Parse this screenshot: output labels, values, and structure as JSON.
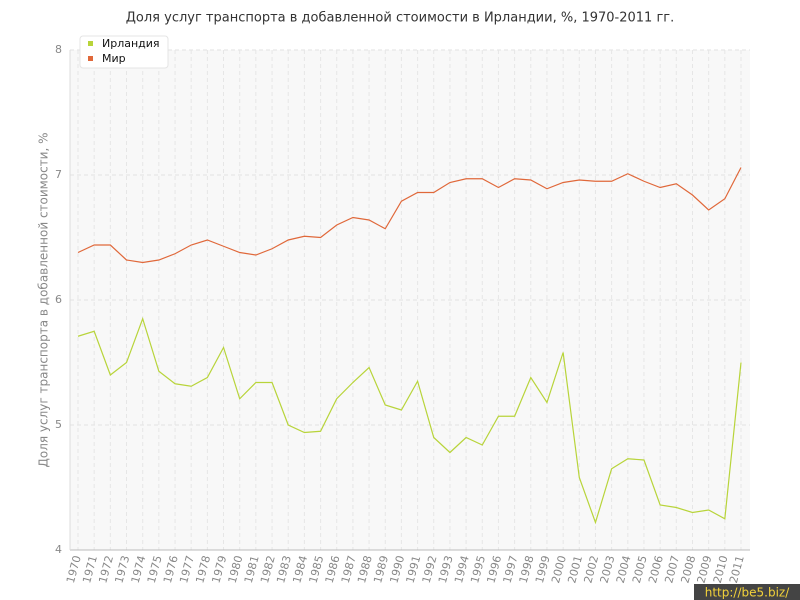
{
  "chart_data": {
    "type": "line",
    "title": "Доля услуг транспорта в добавленной стоимости в Ирландии, %, 1970-2011 гг.",
    "y_label": "Доля услуг транспорта в добавленной стоимости, %",
    "categories": [
      "1970",
      "1971",
      "1972",
      "1973",
      "1974",
      "1975",
      "1976",
      "1977",
      "1978",
      "1979",
      "1980",
      "1981",
      "1982",
      "1983",
      "1984",
      "1985",
      "1986",
      "1987",
      "1988",
      "1989",
      "1990",
      "1991",
      "1992",
      "1993",
      "1994",
      "1995",
      "1996",
      "1997",
      "1998",
      "1999",
      "2000",
      "2001",
      "2002",
      "2003",
      "2004",
      "2005",
      "2006",
      "2007",
      "2008",
      "2009",
      "2010",
      "2011"
    ],
    "series": [
      {
        "name": "Ирландия",
        "color": "#b8d43a",
        "values": [
          5.71,
          5.75,
          5.4,
          5.5,
          5.85,
          5.43,
          5.33,
          5.31,
          5.38,
          5.62,
          5.21,
          5.34,
          5.34,
          5.0,
          4.94,
          4.95,
          5.21,
          5.34,
          5.46,
          5.16,
          5.12,
          5.35,
          4.9,
          4.78,
          4.9,
          4.84,
          5.07,
          5.07,
          5.38,
          5.18,
          5.58,
          4.58,
          4.22,
          4.65,
          4.73,
          4.72,
          4.36,
          4.34,
          4.3,
          4.32,
          4.25,
          5.5
        ]
      },
      {
        "name": "Мир",
        "color": "#e0683a",
        "values": [
          6.38,
          6.44,
          6.44,
          6.32,
          6.3,
          6.32,
          6.37,
          6.44,
          6.48,
          6.43,
          6.38,
          6.36,
          6.41,
          6.48,
          6.51,
          6.5,
          6.6,
          6.66,
          6.64,
          6.57,
          6.79,
          6.86,
          6.86,
          6.94,
          6.97,
          6.97,
          6.9,
          6.97,
          6.96,
          6.89,
          6.94,
          6.96,
          6.95,
          6.95,
          7.01,
          6.95,
          6.9,
          6.93,
          6.84,
          6.72,
          6.81,
          7.06
        ]
      }
    ],
    "ylim": [
      4,
      8
    ],
    "yticks": [
      4,
      5,
      6,
      7,
      8
    ],
    "grid": true,
    "legend": "top-left"
  },
  "watermark": "http://be5.biz/"
}
